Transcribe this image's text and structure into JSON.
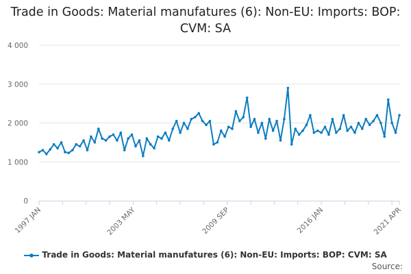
{
  "chart_data": {
    "type": "line",
    "title": "Trade in Goods: Material manufatures (6): Non-EU: Imports: BOP: CVM: SA",
    "xlabel": "",
    "ylabel": "",
    "ylim": [
      0,
      4000
    ],
    "yticks": [
      0,
      1000,
      2000,
      3000,
      4000
    ],
    "ytick_labels": [
      "0",
      "1 000",
      "2 000",
      "3 000",
      "4 000"
    ],
    "xrange": [
      "1997-01",
      "2021-04"
    ],
    "xtick_labels": [
      {
        "label": "1997 JAN",
        "date": "1997-01"
      },
      {
        "label": "2003 MAY",
        "date": "2003-05"
      },
      {
        "label": "2009 SEP",
        "date": "2009-09"
      },
      {
        "label": "2016 JAN",
        "date": "2016-01"
      },
      {
        "label": "2021 APR",
        "date": "2021-04"
      }
    ],
    "grid": true,
    "legend_position": "bottom",
    "color": "#0a7cc1",
    "series": [
      {
        "name": "Trade in Goods: Material manufatures (6): Non-EU: Imports: BOP: CVM: SA",
        "points": [
          [
            "1997-01",
            1250
          ],
          [
            "1997-04",
            1300
          ],
          [
            "1997-07",
            1200
          ],
          [
            "1997-10",
            1320
          ],
          [
            "1998-01",
            1450
          ],
          [
            "1998-04",
            1350
          ],
          [
            "1998-07",
            1500
          ],
          [
            "1998-10",
            1250
          ],
          [
            "1999-01",
            1230
          ],
          [
            "1999-04",
            1300
          ],
          [
            "1999-07",
            1450
          ],
          [
            "1999-10",
            1400
          ],
          [
            "2000-01",
            1550
          ],
          [
            "2000-04",
            1300
          ],
          [
            "2000-07",
            1650
          ],
          [
            "2000-10",
            1500
          ],
          [
            "2001-01",
            1850
          ],
          [
            "2001-04",
            1600
          ],
          [
            "2001-07",
            1550
          ],
          [
            "2001-10",
            1650
          ],
          [
            "2002-01",
            1700
          ],
          [
            "2002-04",
            1550
          ],
          [
            "2002-07",
            1750
          ],
          [
            "2002-10",
            1300
          ],
          [
            "2003-01",
            1600
          ],
          [
            "2003-04",
            1700
          ],
          [
            "2003-07",
            1400
          ],
          [
            "2003-10",
            1550
          ],
          [
            "2004-01",
            1150
          ],
          [
            "2004-04",
            1600
          ],
          [
            "2004-07",
            1450
          ],
          [
            "2004-10",
            1350
          ],
          [
            "2005-01",
            1650
          ],
          [
            "2005-04",
            1600
          ],
          [
            "2005-07",
            1750
          ],
          [
            "2005-10",
            1550
          ],
          [
            "2006-01",
            1850
          ],
          [
            "2006-04",
            2050
          ],
          [
            "2006-07",
            1750
          ],
          [
            "2006-10",
            2000
          ],
          [
            "2007-01",
            1850
          ],
          [
            "2007-04",
            2100
          ],
          [
            "2007-07",
            2150
          ],
          [
            "2007-10",
            2250
          ],
          [
            "2008-01",
            2050
          ],
          [
            "2008-04",
            1950
          ],
          [
            "2008-07",
            2050
          ],
          [
            "2008-10",
            1450
          ],
          [
            "2009-01",
            1500
          ],
          [
            "2009-04",
            1800
          ],
          [
            "2009-07",
            1650
          ],
          [
            "2009-10",
            1900
          ],
          [
            "2010-01",
            1850
          ],
          [
            "2010-04",
            2300
          ],
          [
            "2010-07",
            2050
          ],
          [
            "2010-10",
            2150
          ],
          [
            "2011-01",
            2650
          ],
          [
            "2011-04",
            1900
          ],
          [
            "2011-07",
            2100
          ],
          [
            "2011-10",
            1750
          ],
          [
            "2012-01",
            2000
          ],
          [
            "2012-04",
            1600
          ],
          [
            "2012-07",
            2100
          ],
          [
            "2012-10",
            1800
          ],
          [
            "2013-01",
            2050
          ],
          [
            "2013-04",
            1550
          ],
          [
            "2013-07",
            2100
          ],
          [
            "2013-10",
            2900
          ],
          [
            "2014-01",
            1450
          ],
          [
            "2014-04",
            1850
          ],
          [
            "2014-07",
            1700
          ],
          [
            "2014-10",
            1800
          ],
          [
            "2015-01",
            1950
          ],
          [
            "2015-04",
            2200
          ],
          [
            "2015-07",
            1750
          ],
          [
            "2015-10",
            1800
          ],
          [
            "2016-01",
            1750
          ],
          [
            "2016-04",
            1900
          ],
          [
            "2016-07",
            1700
          ],
          [
            "2016-10",
            2100
          ],
          [
            "2017-01",
            1750
          ],
          [
            "2017-04",
            1850
          ],
          [
            "2017-07",
            2200
          ],
          [
            "2017-10",
            1800
          ],
          [
            "2018-01",
            1900
          ],
          [
            "2018-04",
            1750
          ],
          [
            "2018-07",
            2000
          ],
          [
            "2018-10",
            1850
          ],
          [
            "2019-01",
            2100
          ],
          [
            "2019-04",
            1950
          ],
          [
            "2019-07",
            2050
          ],
          [
            "2019-10",
            2200
          ],
          [
            "2020-01",
            2000
          ],
          [
            "2020-04",
            1650
          ],
          [
            "2020-07",
            2600
          ],
          [
            "2020-10",
            2000
          ],
          [
            "2021-01",
            1750
          ],
          [
            "2021-04",
            2200
          ]
        ]
      }
    ]
  },
  "source_label": "Source:"
}
